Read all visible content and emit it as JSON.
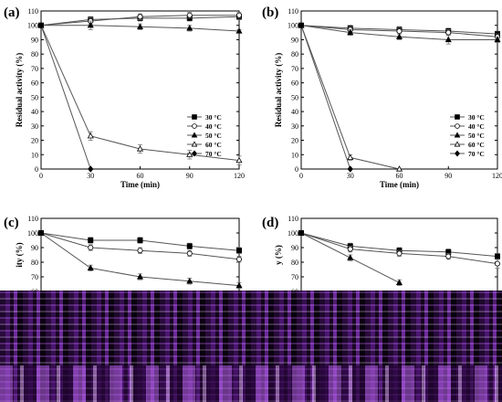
{
  "chart_data": [
    {
      "type": "line",
      "panel": "(a)",
      "xlabel": "Time (min)",
      "ylabel": "Residual activity (%)",
      "x": [
        0,
        30,
        60,
        90,
        120
      ],
      "xticks": [
        "0",
        "30",
        "60",
        "90",
        "120"
      ],
      "yticks": [
        "0",
        "10",
        "20",
        "30",
        "40",
        "50",
        "60",
        "70",
        "80",
        "90",
        "100",
        "110"
      ],
      "xlim": [
        0,
        120
      ],
      "ylim": [
        0,
        110
      ],
      "legend_position": "center-right",
      "series": [
        {
          "name": "30 °C",
          "marker": "square-filled",
          "values": [
            100,
            104,
            105,
            105,
            106
          ],
          "errors": [
            0,
            2,
            2,
            2,
            2
          ]
        },
        {
          "name": "40 °C",
          "marker": "circle-open",
          "values": [
            100,
            103,
            106,
            107,
            107
          ],
          "errors": [
            0,
            2,
            2,
            2,
            2
          ]
        },
        {
          "name": "50 °C",
          "marker": "triangle-filled",
          "values": [
            100,
            100,
            99,
            98,
            96
          ],
          "errors": [
            0,
            3,
            2,
            2,
            1
          ]
        },
        {
          "name": "60 °C",
          "marker": "triangle-open",
          "values": [
            100,
            23,
            14,
            10,
            6
          ],
          "errors": [
            0,
            3,
            3,
            3,
            3
          ]
        },
        {
          "name": "70 °C",
          "marker": "diamond-filled",
          "values": [
            100,
            0,
            null,
            null,
            null
          ],
          "errors": [
            0,
            0,
            0,
            0,
            0
          ]
        }
      ]
    },
    {
      "type": "line",
      "panel": "(b)",
      "xlabel": "Time (min)",
      "ylabel": "Residual activity (%)",
      "x": [
        0,
        30,
        60,
        90,
        120
      ],
      "xticks": [
        "0",
        "30",
        "60",
        "90",
        "120"
      ],
      "yticks": [
        "0",
        "10",
        "20",
        "30",
        "40",
        "50",
        "60",
        "70",
        "80",
        "90",
        "100",
        "110"
      ],
      "xlim": [
        0,
        120
      ],
      "ylim": [
        0,
        110
      ],
      "legend_position": "center-right",
      "series": [
        {
          "name": "30 °C",
          "marker": "square-filled",
          "values": [
            100,
            98,
            97,
            96,
            94
          ],
          "errors": [
            0,
            2,
            2,
            2,
            2
          ]
        },
        {
          "name": "40 °C",
          "marker": "circle-open",
          "values": [
            100,
            97,
            96,
            95,
            92
          ],
          "errors": [
            0,
            2,
            2,
            2,
            2
          ]
        },
        {
          "name": "50 °C",
          "marker": "triangle-filled",
          "values": [
            100,
            95,
            92,
            90,
            90
          ],
          "errors": [
            0,
            2,
            2,
            3,
            2
          ]
        },
        {
          "name": "60 °C",
          "marker": "triangle-open",
          "values": [
            100,
            8,
            0,
            null,
            null
          ],
          "errors": [
            0,
            2,
            0,
            0,
            0
          ]
        },
        {
          "name": "70 °C",
          "marker": "diamond-filled",
          "values": [
            100,
            0,
            null,
            null,
            null
          ],
          "errors": [
            0,
            0,
            0,
            0,
            0
          ]
        }
      ]
    },
    {
      "type": "line",
      "panel": "(c)",
      "xlabel": "",
      "ylabel": "ity (%)",
      "x": [
        0,
        30,
        60,
        90,
        120
      ],
      "yticks": [
        "60",
        "70",
        "80",
        "90",
        "100",
        "110"
      ],
      "xlim": [
        0,
        120
      ],
      "ylim": [
        60,
        110
      ],
      "series": [
        {
          "name": "30 °C",
          "marker": "square-filled",
          "values": [
            100,
            95,
            95,
            91,
            88
          ],
          "errors": [
            0,
            2,
            2,
            2,
            2
          ]
        },
        {
          "name": "40 °C",
          "marker": "circle-open",
          "values": [
            100,
            90,
            88,
            86,
            82
          ],
          "errors": [
            0,
            2,
            2,
            2,
            2
          ]
        },
        {
          "name": "50 °C",
          "marker": "triangle-filled",
          "values": [
            100,
            76,
            70,
            67,
            64
          ],
          "errors": [
            0,
            2,
            2,
            2,
            2
          ]
        },
        {
          "name": "60 °C",
          "marker": "triangle-open",
          "values": [
            100,
            null,
            null,
            null,
            null
          ],
          "errors": [
            0,
            0,
            0,
            0,
            0
          ]
        },
        {
          "name": "70 °C",
          "marker": "diamond-filled",
          "values": [
            100,
            null,
            null,
            null,
            null
          ],
          "errors": [
            0,
            0,
            0,
            0,
            0
          ]
        }
      ]
    },
    {
      "type": "line",
      "panel": "(d)",
      "xlabel": "",
      "ylabel": "y (%)",
      "x": [
        0,
        30,
        60,
        90,
        120
      ],
      "yticks": [
        "60",
        "70",
        "80",
        "90",
        "100",
        "110"
      ],
      "xlim": [
        0,
        120
      ],
      "ylim": [
        60,
        110
      ],
      "series": [
        {
          "name": "30 °C",
          "marker": "square-filled",
          "values": [
            100,
            91,
            88,
            87,
            84
          ],
          "errors": [
            0,
            2,
            2,
            2,
            2
          ]
        },
        {
          "name": "40 °C",
          "marker": "circle-open",
          "values": [
            100,
            89,
            86,
            84,
            79
          ],
          "errors": [
            0,
            2,
            2,
            2,
            3
          ]
        },
        {
          "name": "50 °C",
          "marker": "triangle-filled",
          "values": [
            100,
            83,
            66,
            null,
            null
          ],
          "errors": [
            0,
            2,
            2,
            0,
            0
          ]
        },
        {
          "name": "60 °C",
          "marker": "triangle-open",
          "values": [
            100,
            null,
            null,
            null,
            null
          ],
          "errors": [
            0,
            0,
            0,
            0,
            0
          ]
        },
        {
          "name": "70 °C",
          "marker": "diamond-filled",
          "values": [
            100,
            null,
            null,
            null,
            null
          ],
          "errors": [
            0,
            0,
            0,
            0,
            0
          ]
        }
      ]
    }
  ]
}
